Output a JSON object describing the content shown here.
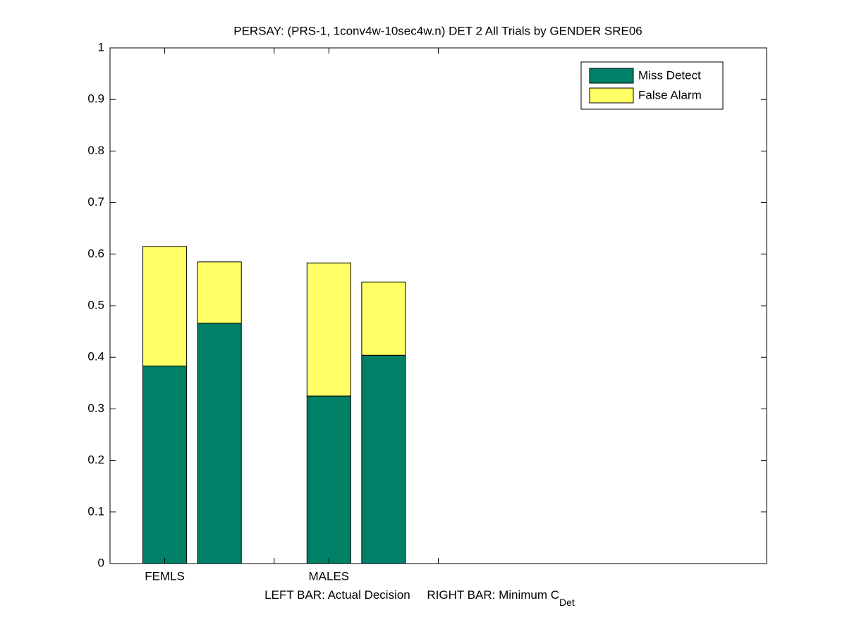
{
  "chart_data": {
    "type": "stacked-bar",
    "title": "PERSAY: (PRS-1, 1conv4w-10sec4w.n) DET 2 All Trials by GENDER SRE06",
    "xlabel": {
      "text": "LEFT BAR: Actual Decision     RIGHT BAR: Minimum C",
      "subscript": "Det"
    },
    "x": [
      1,
      2,
      4,
      5
    ],
    "xlim": [
      0,
      12
    ],
    "xticks": [
      {
        "value": 1,
        "label": "FEMLS"
      },
      {
        "value": 3,
        "label": null
      },
      {
        "value": 4,
        "label": "MALES"
      },
      {
        "value": 6,
        "label": null
      }
    ],
    "ylim": [
      0,
      1
    ],
    "yticks": [
      0,
      0.1,
      0.2,
      0.3,
      0.4,
      0.5,
      0.6,
      0.7,
      0.8,
      0.9,
      1
    ],
    "series": [
      {
        "name": "Miss Detect",
        "color": "#008066",
        "values": [
          0.383,
          0.466,
          0.325,
          0.404
        ]
      },
      {
        "name": "False Alarm",
        "color": "#ffff66",
        "values": [
          0.232,
          0.119,
          0.258,
          0.142
        ]
      }
    ],
    "legend": "top-right"
  }
}
